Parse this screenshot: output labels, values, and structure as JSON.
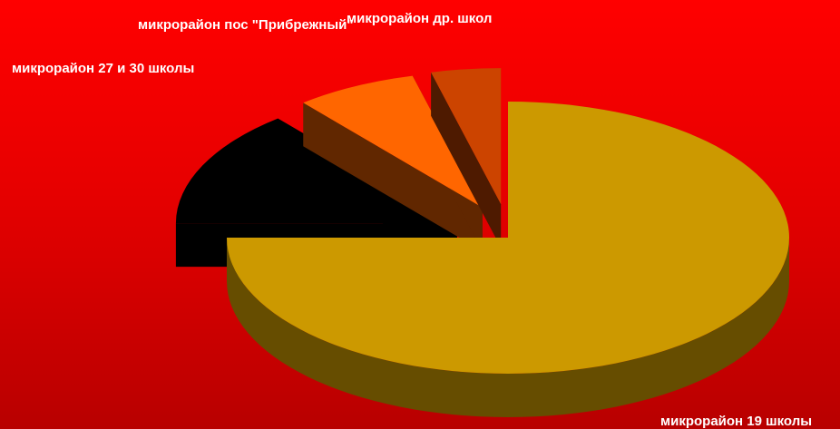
{
  "chart_data": {
    "type": "pie",
    "style": "3d-exploded",
    "background": "red-gradient",
    "slices": [
      {
        "label": "микрорайон 19 школы",
        "value": 75,
        "color": "#cc9900"
      },
      {
        "label": "микрорайон 27 и 30 школы",
        "value": 14,
        "color": "#000000"
      },
      {
        "label": "микрорайон пос \"Прибрежный\"",
        "value": 7,
        "color": "#ff6600"
      },
      {
        "label": "микрорайон др. школ",
        "value": 4,
        "color": "#cc4400"
      }
    ]
  }
}
